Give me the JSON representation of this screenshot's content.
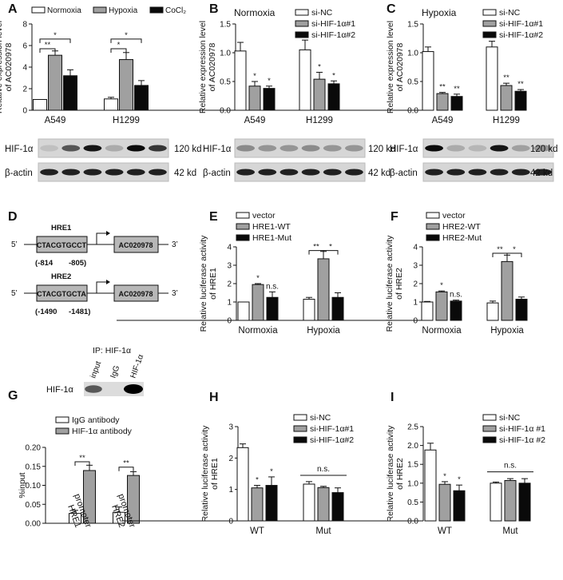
{
  "chart_data": [
    {
      "panel": "A",
      "type": "bar",
      "ylabel": "Relative expression level of AC020978",
      "ylim": [
        0,
        8
      ],
      "yticks": [
        0,
        2,
        4,
        6,
        8
      ],
      "categories": [
        "A549",
        "H1299"
      ],
      "series": [
        {
          "name": "Normoxia",
          "fill": "#ffffff",
          "values": [
            1.0,
            1.05
          ],
          "errors": [
            0.0,
            0.15
          ]
        },
        {
          "name": "Hypoxia",
          "fill": "#a0a0a0",
          "values": [
            5.1,
            4.7
          ],
          "errors": [
            0.4,
            0.65
          ]
        },
        {
          "name": "CoCl2",
          "fill": "#0a0a0a",
          "values": [
            3.2,
            2.3
          ],
          "errors": [
            0.55,
            0.45
          ]
        }
      ],
      "sig": [
        {
          "from": [
            0,
            0
          ],
          "to": [
            0,
            1
          ],
          "y": 5.7,
          "label": "**"
        },
        {
          "from": [
            0,
            0
          ],
          "to": [
            0,
            2
          ],
          "y": 6.6,
          "label": "*"
        },
        {
          "from": [
            1,
            0
          ],
          "to": [
            1,
            1
          ],
          "y": 5.7,
          "label": "*"
        },
        {
          "from": [
            1,
            0
          ],
          "to": [
            1,
            2
          ],
          "y": 6.6,
          "label": "*"
        }
      ],
      "blot": {
        "rows": [
          {
            "label": "HIF-1α",
            "size": "120 kd",
            "bands": [
              0.1,
              0.6,
              0.9,
              0.2,
              0.95,
              0.75
            ]
          },
          {
            "label": "β-actin",
            "size": "42 kd",
            "bands": [
              0.85,
              0.85,
              0.85,
              0.85,
              0.85,
              0.85
            ]
          }
        ]
      }
    },
    {
      "panel": "B",
      "type": "bar",
      "inset_title": "Normoxia",
      "ylabel": "Relative expression level of AC020978",
      "ylim": [
        0,
        1.5
      ],
      "yticks": [
        0.0,
        0.5,
        1.0,
        1.5
      ],
      "categories": [
        "A549",
        "H1299"
      ],
      "series": [
        {
          "name": "si-NC",
          "fill": "#ffffff",
          "values": [
            1.03,
            1.05
          ],
          "errors": [
            0.15,
            0.17
          ]
        },
        {
          "name": "si-HIF-1α#1",
          "fill": "#a0a0a0",
          "values": [
            0.42,
            0.54
          ],
          "errors": [
            0.08,
            0.12
          ]
        },
        {
          "name": "si-HIF-1α#2",
          "fill": "#0a0a0a",
          "values": [
            0.38,
            0.46
          ],
          "errors": [
            0.04,
            0.05
          ]
        }
      ],
      "stars": [
        {
          "group": 0,
          "series": 1,
          "label": "*"
        },
        {
          "group": 0,
          "series": 2,
          "label": "*"
        },
        {
          "group": 1,
          "series": 1,
          "label": "*"
        },
        {
          "group": 1,
          "series": 2,
          "label": "*"
        }
      ],
      "blot": {
        "rows": [
          {
            "label": "HIF-1α",
            "size": "120 kd",
            "bands": [
              0.35,
              0.3,
              0.3,
              0.35,
              0.3,
              0.3
            ]
          },
          {
            "label": "β-actin",
            "size": "42 kd",
            "bands": [
              0.85,
              0.85,
              0.85,
              0.85,
              0.85,
              0.85
            ]
          }
        ]
      }
    },
    {
      "panel": "C",
      "type": "bar",
      "inset_title": "Hypoxia",
      "ylabel": "Relative expression level of AC020978",
      "ylim": [
        0,
        1.5
      ],
      "yticks": [
        0.0,
        0.5,
        1.0,
        1.5
      ],
      "categories": [
        "A549",
        "H1299"
      ],
      "series": [
        {
          "name": "si-NC",
          "fill": "#ffffff",
          "values": [
            1.02,
            1.1
          ],
          "errors": [
            0.08,
            0.1
          ]
        },
        {
          "name": "si-HIF-1α#1",
          "fill": "#a0a0a0",
          "values": [
            0.29,
            0.43
          ],
          "errors": [
            0.02,
            0.04
          ]
        },
        {
          "name": "si-HIF-1α#2",
          "fill": "#0a0a0a",
          "values": [
            0.24,
            0.33
          ],
          "errors": [
            0.04,
            0.03
          ]
        }
      ],
      "stars": [
        {
          "group": 0,
          "series": 1,
          "label": "**"
        },
        {
          "group": 0,
          "series": 2,
          "label": "**"
        },
        {
          "group": 1,
          "series": 1,
          "label": "**"
        },
        {
          "group": 1,
          "series": 2,
          "label": "**"
        }
      ],
      "blot": {
        "rows": [
          {
            "label": "HIF-1α",
            "size": "120 kd",
            "bands": [
              0.95,
              0.2,
              0.15,
              0.9,
              0.25,
              0.3
            ]
          },
          {
            "label": "β-actin",
            "size": "42 kd",
            "bands": [
              0.85,
              0.85,
              0.85,
              0.85,
              0.85,
              0.85
            ]
          }
        ]
      }
    },
    {
      "panel": "E",
      "type": "bar",
      "ylabel": "Relative luciferase activity of HRE1",
      "ylim": [
        0,
        4
      ],
      "yticks": [
        0,
        1,
        2,
        3,
        4
      ],
      "categories": [
        "Normoxia",
        "Hypoxia"
      ],
      "series": [
        {
          "name": "vector",
          "fill": "#ffffff",
          "values": [
            1.0,
            1.15
          ],
          "errors": [
            0.0,
            0.1
          ]
        },
        {
          "name": "HRE1-WT",
          "fill": "#a0a0a0",
          "values": [
            1.95,
            3.35
          ],
          "errors": [
            0.05,
            0.4
          ]
        },
        {
          "name": "HRE1-Mut",
          "fill": "#0a0a0a",
          "values": [
            1.25,
            1.25
          ],
          "errors": [
            0.3,
            0.25
          ]
        }
      ],
      "stars": [
        {
          "group": 0,
          "series": 1,
          "label": "*"
        },
        {
          "group": 0,
          "series": 2,
          "label": "n.s."
        }
      ],
      "sig": [
        {
          "from": [
            1,
            0
          ],
          "to": [
            1,
            1
          ],
          "y": 3.8,
          "label": "**"
        },
        {
          "from": [
            1,
            1
          ],
          "to": [
            1,
            2
          ],
          "y": 3.8,
          "label": "*"
        }
      ]
    },
    {
      "panel": "F",
      "type": "bar",
      "ylabel": "Relative luciferase activity of HRE2",
      "ylim": [
        0,
        4
      ],
      "yticks": [
        0,
        1,
        2,
        3,
        4
      ],
      "categories": [
        "Normoxia",
        "Hypoxia"
      ],
      "series": [
        {
          "name": "vector",
          "fill": "#ffffff",
          "values": [
            1.0,
            0.95
          ],
          "errors": [
            0.03,
            0.1
          ]
        },
        {
          "name": "HRE2-WT",
          "fill": "#a0a0a0",
          "values": [
            1.55,
            3.2
          ],
          "errors": [
            0.05,
            0.35
          ]
        },
        {
          "name": "HRE2-Mut",
          "fill": "#0a0a0a",
          "values": [
            1.05,
            1.15
          ],
          "errors": [
            0.05,
            0.12
          ]
        }
      ],
      "stars": [
        {
          "group": 0,
          "series": 1,
          "label": "*"
        },
        {
          "group": 0,
          "series": 2,
          "label": "n.s."
        }
      ],
      "sig": [
        {
          "from": [
            1,
            0
          ],
          "to": [
            1,
            1
          ],
          "y": 3.65,
          "label": "**"
        },
        {
          "from": [
            1,
            1
          ],
          "to": [
            1,
            2
          ],
          "y": 3.65,
          "label": "*"
        }
      ]
    },
    {
      "panel": "G",
      "type": "bar",
      "ylabel": "%input",
      "ylim": [
        0,
        0.2
      ],
      "yticks": [
        0.0,
        0.05,
        0.1,
        0.15,
        0.2
      ],
      "categories": [
        "HRE1 promoter",
        "HRE2 promoter"
      ],
      "series": [
        {
          "name": "IgG antibody",
          "fill": "#ffffff",
          "values": [
            0.026,
            0.029
          ],
          "errors": [
            0.008,
            0.014
          ]
        },
        {
          "name": "HIF-1α antibody",
          "fill": "#a0a0a0",
          "values": [
            0.139,
            0.126
          ],
          "errors": [
            0.014,
            0.01
          ]
        }
      ],
      "sig": [
        {
          "from": [
            0,
            0
          ],
          "to": [
            0,
            1
          ],
          "y": 0.162,
          "label": "**"
        },
        {
          "from": [
            1,
            0
          ],
          "to": [
            1,
            1
          ],
          "y": 0.148,
          "label": "**"
        }
      ],
      "blot": {
        "title": "IP: HIF-1α",
        "lanes": [
          "input",
          "IgG",
          "HIF-1α"
        ],
        "rows": [
          {
            "label": "HIF-1α",
            "bands": [
              0.6,
              0.0,
              1.0
            ]
          }
        ]
      }
    },
    {
      "panel": "H",
      "type": "bar",
      "ylabel": "Relative luciferase activity of HRE1",
      "ylim": [
        0,
        3
      ],
      "yticks": [
        0,
        1,
        2,
        3
      ],
      "categories": [
        "WT",
        "Mut"
      ],
      "series": [
        {
          "name": "si-NC",
          "fill": "#ffffff",
          "values": [
            2.33,
            1.17
          ],
          "errors": [
            0.12,
            0.08
          ]
        },
        {
          "name": "si-HIF-1α#1",
          "fill": "#a0a0a0",
          "values": [
            1.05,
            1.06
          ],
          "errors": [
            0.08,
            0.04
          ]
        },
        {
          "name": "si-HIF-1α#2",
          "fill": "#0a0a0a",
          "values": [
            1.13,
            0.9
          ],
          "errors": [
            0.27,
            0.15
          ]
        }
      ],
      "stars": [
        {
          "group": 0,
          "series": 1,
          "label": "*"
        },
        {
          "group": 0,
          "series": 2,
          "label": "*"
        }
      ],
      "bracket": {
        "group": 1,
        "y": 1.45,
        "label": "n.s."
      }
    },
    {
      "panel": "I",
      "type": "bar",
      "ylabel": "Relative luciferase activity of HRE2",
      "ylim": [
        0,
        2.5
      ],
      "yticks": [
        0.0,
        0.5,
        1.0,
        1.5,
        2.0,
        2.5
      ],
      "categories": [
        "WT",
        "Mut"
      ],
      "series": [
        {
          "name": "si-NC",
          "fill": "#ffffff",
          "values": [
            1.88,
            1.0
          ],
          "errors": [
            0.18,
            0.03
          ]
        },
        {
          "name": "si-HIF-1α #1",
          "fill": "#a0a0a0",
          "values": [
            0.97,
            1.07
          ],
          "errors": [
            0.07,
            0.05
          ]
        },
        {
          "name": "si-HIF-1α #2",
          "fill": "#0a0a0a",
          "values": [
            0.8,
            1.0
          ],
          "errors": [
            0.15,
            0.12
          ]
        }
      ],
      "stars": [
        {
          "group": 0,
          "series": 1,
          "label": "*"
        },
        {
          "group": 0,
          "series": 2,
          "label": "*"
        }
      ],
      "bracket": {
        "group": 1,
        "y": 1.3,
        "label": "n.s."
      }
    }
  ],
  "panel_d": {
    "elements": [
      {
        "name": "HRE1",
        "sequence": "CTACGTGCCT",
        "start": "(-814",
        "end": "-805)",
        "gene": "AC020978"
      },
      {
        "name": "HRE2",
        "sequence": "CTACGTGCTA",
        "start": "(-1490",
        "end": "-1481)",
        "gene": "AC020978"
      }
    ],
    "five_prime": "5’",
    "three_prime": "3’"
  }
}
